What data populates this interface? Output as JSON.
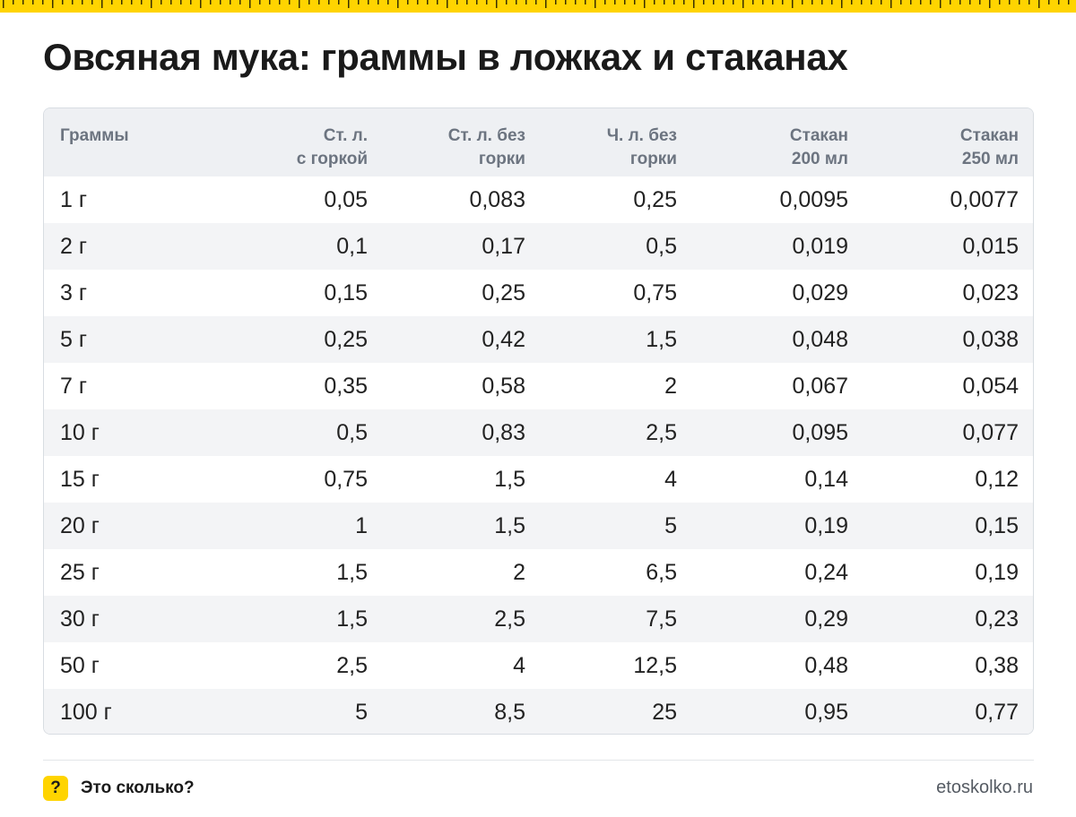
{
  "colors": {
    "accent": "#ffd400",
    "header_bg": "#eef0f3",
    "stripe_bg": "#f3f4f6"
  },
  "title": "Овсяная мука: граммы в ложках и стаканах",
  "table": {
    "headers": [
      "Граммы",
      "Ст. л.\nс горкой",
      "Ст. л. без\nгорки",
      "Ч. л. без\nгорки",
      "Стакан\n200 мл",
      "Стакан\n250 мл"
    ],
    "rows": [
      [
        "1 г",
        "0,05",
        "0,083",
        "0,25",
        "0,0095",
        "0,0077"
      ],
      [
        "2 г",
        "0,1",
        "0,17",
        "0,5",
        "0,019",
        "0,015"
      ],
      [
        "3 г",
        "0,15",
        "0,25",
        "0,75",
        "0,029",
        "0,023"
      ],
      [
        "5 г",
        "0,25",
        "0,42",
        "1,5",
        "0,048",
        "0,038"
      ],
      [
        "7 г",
        "0,35",
        "0,58",
        "2",
        "0,067",
        "0,054"
      ],
      [
        "10 г",
        "0,5",
        "0,83",
        "2,5",
        "0,095",
        "0,077"
      ],
      [
        "15 г",
        "0,75",
        "1,5",
        "4",
        "0,14",
        "0,12"
      ],
      [
        "20 г",
        "1",
        "1,5",
        "5",
        "0,19",
        "0,15"
      ],
      [
        "25 г",
        "1,5",
        "2",
        "6,5",
        "0,24",
        "0,19"
      ],
      [
        "30 г",
        "1,5",
        "2,5",
        "7,5",
        "0,29",
        "0,23"
      ],
      [
        "50 г",
        "2,5",
        "4",
        "12,5",
        "0,48",
        "0,38"
      ],
      [
        "100 г",
        "5",
        "8,5",
        "25",
        "0,95",
        "0,77"
      ]
    ]
  },
  "footer": {
    "badge_icon": "question-mark-icon",
    "badge_glyph": "?",
    "brand": "Это сколько?",
    "site": "etoskolko.ru"
  }
}
